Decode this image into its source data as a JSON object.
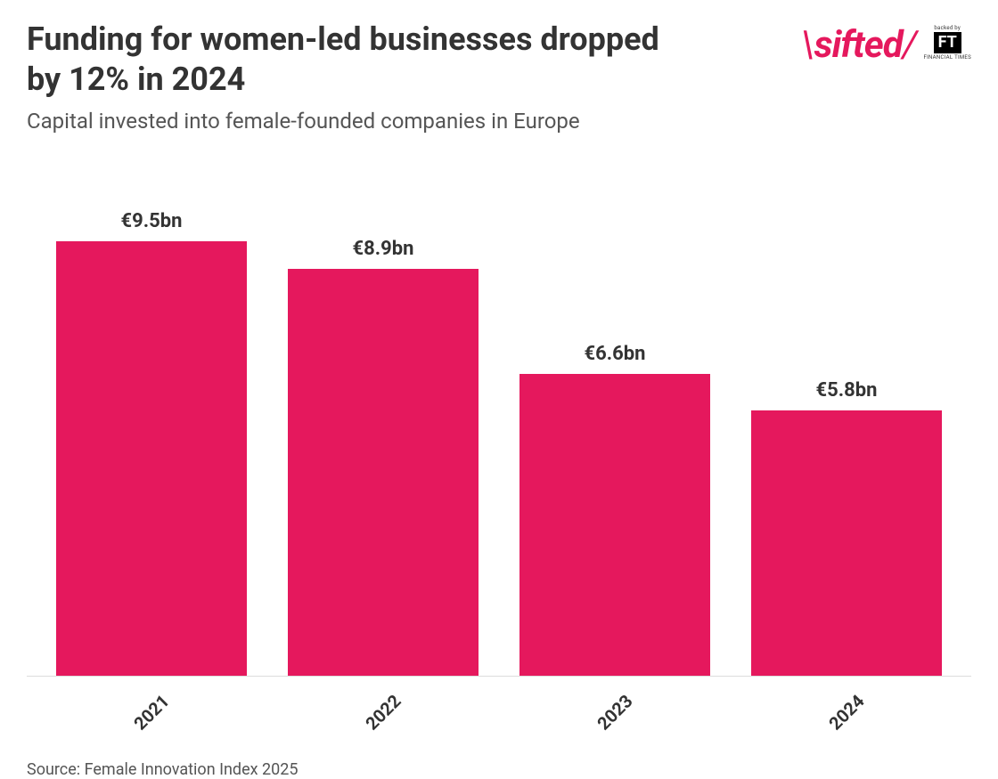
{
  "title": "Funding for women-led businesses dropped by 12% in 2024",
  "subtitle": "Capital invested into female-founded companies in Europe",
  "logo": {
    "brand": "sifted",
    "brand_color": "#e5185d",
    "backed_by": "backed by",
    "ft_initials": "FT",
    "ft_name": "FINANCIAL TIMES"
  },
  "chart": {
    "type": "bar",
    "bar_color": "#e5185d",
    "background_color": "#ffffff",
    "axis_line_color": "#dddddd",
    "max_value": 10.5,
    "value_unit_prefix": "€",
    "value_unit_suffix": "bn",
    "label_fontsize": 22,
    "xlabel_fontsize": 20,
    "xlabel_rotation_deg": -45,
    "bar_width_pct": 82,
    "bars": [
      {
        "category": "2021",
        "value": 9.5,
        "display": "€9.5bn"
      },
      {
        "category": "2022",
        "value": 8.9,
        "display": "€8.9bn"
      },
      {
        "category": "2023",
        "value": 6.6,
        "display": "€6.6bn"
      },
      {
        "category": "2024",
        "value": 5.8,
        "display": "€5.8bn"
      }
    ]
  },
  "source": "Source: Female Innovation Index 2025"
}
